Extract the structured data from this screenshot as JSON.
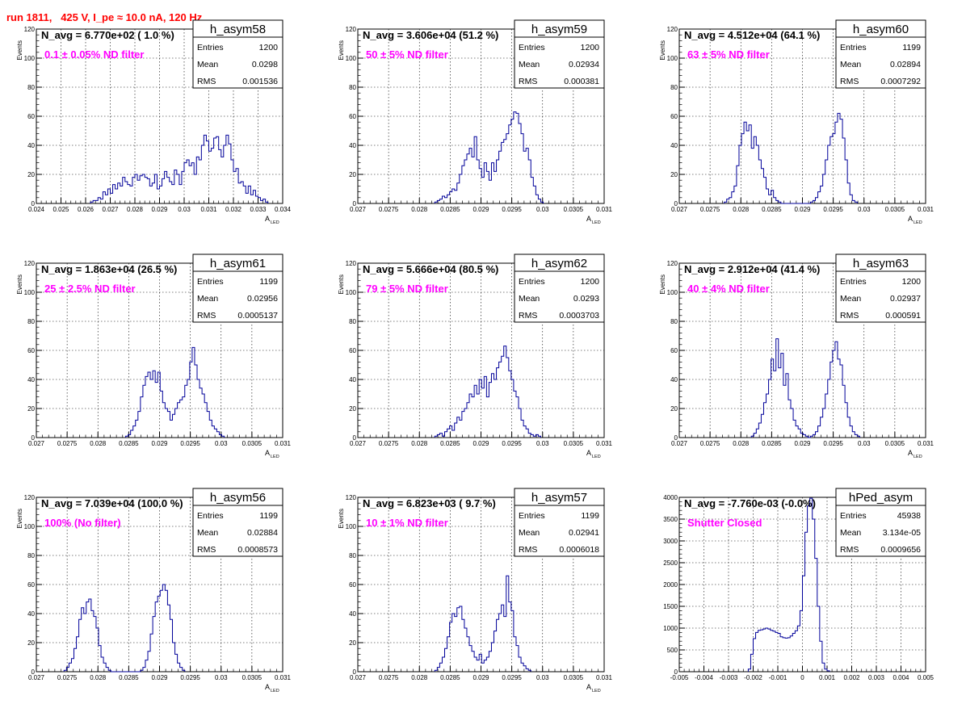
{
  "header": {
    "title": "run 1811,   425 V, I_pe ≈ 10.0 nA, 120 Hz"
  },
  "chart_data": [
    {
      "type": "bar",
      "name": "h_asym58",
      "annotation_line1": "N_avg = 6.770e+02 ( 1.0 %)",
      "annotation_line2": "0.1 ± 0.05% ND filter",
      "stats": {
        "Entries": "1200",
        "Mean": "0.0298",
        "RMS": "0.001536"
      },
      "ylabel": "Events",
      "xlabel": "A",
      "xlabel_sub": "LED",
      "xlim": [
        0.024,
        0.034
      ],
      "ylim": [
        0,
        120
      ],
      "x_ticks": [
        "0.024",
        "0.025",
        "0.026",
        "0.027",
        "0.028",
        "0.029",
        "0.03",
        "0.031",
        "0.032",
        "0.033",
        "0.034"
      ],
      "y_ticks": [
        "0",
        "20",
        "40",
        "60",
        "80",
        "100",
        "120"
      ],
      "bin_start": 0.0262,
      "bin_width": 0.0001,
      "values": [
        1,
        2,
        2,
        4,
        3,
        8,
        6,
        10,
        7,
        13,
        10,
        14,
        12,
        18,
        15,
        13,
        12,
        18,
        20,
        16,
        19,
        20,
        18,
        17,
        12,
        14,
        20,
        10,
        12,
        17,
        22,
        18,
        15,
        13,
        23,
        20,
        13,
        22,
        28,
        30,
        26,
        28,
        20,
        32,
        30,
        40,
        47,
        43,
        36,
        38,
        45,
        46,
        37,
        32,
        40,
        47,
        41,
        30,
        22,
        24,
        14,
        15,
        12,
        7,
        12,
        6,
        9,
        5,
        4,
        2,
        3,
        1
      ]
    },
    {
      "type": "bar",
      "name": "h_asym59",
      "annotation_line1": "N_avg = 3.606e+04 (51.2 %)",
      "annotation_line2": "50 ± 5% ND filter",
      "stats": {
        "Entries": "1200",
        "Mean": "0.02934",
        "RMS": "0.000381"
      },
      "ylabel": "Events",
      "xlabel": "A",
      "xlabel_sub": "LED",
      "xlim": [
        0.027,
        0.031
      ],
      "ylim": [
        0,
        120
      ],
      "x_ticks": [
        "0.027",
        "0.0275",
        "0.028",
        "0.0285",
        "0.029",
        "0.0295",
        "0.03",
        "0.0305",
        "0.031"
      ],
      "y_ticks": [
        "0",
        "20",
        "40",
        "60",
        "80",
        "100",
        "120"
      ],
      "bin_start": 0.02825,
      "bin_width": 4e-05,
      "values": [
        1,
        2,
        3,
        5,
        4,
        6,
        8,
        10,
        9,
        14,
        20,
        26,
        30,
        34,
        38,
        32,
        46,
        30,
        24,
        18,
        28,
        22,
        16,
        28,
        22,
        30,
        36,
        42,
        44,
        48,
        54,
        58,
        63,
        62,
        55,
        48,
        36,
        38,
        30,
        18,
        12,
        6,
        3,
        1
      ]
    },
    {
      "type": "bar",
      "name": "h_asym60",
      "annotation_line1": "N_avg = 4.512e+04 (64.1 %)",
      "annotation_line2": "63 ± 5% ND filter",
      "stats": {
        "Entries": "1199",
        "Mean": "0.02894",
        "RMS": "0.0007292"
      },
      "ylabel": "Events",
      "xlabel": "A",
      "xlabel_sub": "LED",
      "xlim": [
        0.027,
        0.031
      ],
      "ylim": [
        0,
        120
      ],
      "x_ticks": [
        "0.027",
        "0.0275",
        "0.028",
        "0.0285",
        "0.029",
        "0.0295",
        "0.03",
        "0.0305",
        "0.031"
      ],
      "y_ticks": [
        "0",
        "20",
        "40",
        "60",
        "80",
        "100",
        "120"
      ],
      "bin_start": 0.02773,
      "bin_width": 4e-05,
      "values": [
        1,
        3,
        4,
        8,
        12,
        26,
        40,
        48,
        56,
        50,
        54,
        38,
        46,
        40,
        30,
        24,
        18,
        10,
        6,
        9,
        4,
        2,
        1,
        0,
        0,
        0,
        0,
        0,
        0,
        0,
        0,
        0,
        0,
        0,
        0,
        1,
        2,
        4,
        8,
        12,
        20,
        30,
        40,
        46,
        48,
        56,
        62,
        58,
        45,
        30,
        14,
        6,
        2,
        1
      ]
    },
    {
      "type": "bar",
      "name": "h_asym61",
      "annotation_line1": "N_avg = 1.863e+04 (26.5 %)",
      "annotation_line2": "25 ± 2.5% ND filter",
      "stats": {
        "Entries": "1199",
        "Mean": "0.02956",
        "RMS": "0.0005137"
      },
      "ylabel": "Events",
      "xlabel": "A",
      "xlabel_sub": "LED",
      "xlim": [
        0.027,
        0.031
      ],
      "ylim": [
        0,
        120
      ],
      "x_ticks": [
        "0.027",
        "0.0275",
        "0.028",
        "0.0285",
        "0.029",
        "0.0295",
        "0.03",
        "0.0305",
        "0.031"
      ],
      "y_ticks": [
        "0",
        "20",
        "40",
        "60",
        "80",
        "100",
        "120"
      ],
      "bin_start": 0.02845,
      "bin_width": 4e-05,
      "values": [
        1,
        2,
        5,
        8,
        12,
        18,
        28,
        36,
        42,
        45,
        40,
        46,
        38,
        45,
        32,
        24,
        20,
        18,
        12,
        16,
        20,
        24,
        26,
        28,
        36,
        40,
        52,
        62,
        50,
        40,
        34,
        30,
        24,
        18,
        12,
        8,
        6,
        4,
        2,
        1
      ]
    },
    {
      "type": "bar",
      "name": "h_asym62",
      "annotation_line1": "N_avg = 5.666e+04 (80.5 %)",
      "annotation_line2": "79 ± 5% ND filter",
      "stats": {
        "Entries": "1200",
        "Mean": "0.0293",
        "RMS": "0.0003703"
      },
      "ylabel": "Events",
      "xlabel": "A",
      "xlabel_sub": "LED",
      "xlim": [
        0.027,
        0.031
      ],
      "ylim": [
        0,
        120
      ],
      "x_ticks": [
        "0.027",
        "0.0275",
        "0.028",
        "0.0285",
        "0.029",
        "0.0295",
        "0.03",
        "0.0305",
        "0.031"
      ],
      "y_ticks": [
        "0",
        "20",
        "40",
        "60",
        "80",
        "100",
        "120"
      ],
      "bin_start": 0.02825,
      "bin_width": 4e-05,
      "values": [
        1,
        2,
        3,
        1,
        4,
        6,
        8,
        5,
        10,
        14,
        12,
        18,
        20,
        24,
        30,
        28,
        36,
        30,
        40,
        34,
        42,
        28,
        38,
        44,
        40,
        48,
        52,
        56,
        63,
        55,
        46,
        40,
        32,
        28,
        20,
        12,
        8,
        6,
        3,
        2,
        1,
        2,
        1
      ]
    },
    {
      "type": "bar",
      "name": "h_asym63",
      "annotation_line1": "N_avg = 2.912e+04 (41.4 %)",
      "annotation_line2": "40 ± 4% ND filter",
      "stats": {
        "Entries": "1200",
        "Mean": "0.02937",
        "RMS": "0.000591"
      },
      "ylabel": "Events",
      "xlabel": "A",
      "xlabel_sub": "LED",
      "xlim": [
        0.027,
        0.031
      ],
      "ylim": [
        0,
        120
      ],
      "x_ticks": [
        "0.027",
        "0.0275",
        "0.028",
        "0.0285",
        "0.029",
        "0.0295",
        "0.03",
        "0.0305",
        "0.031"
      ],
      "y_ticks": [
        "0",
        "20",
        "40",
        "60",
        "80",
        "100",
        "120"
      ],
      "bin_start": 0.02817,
      "bin_width": 4e-05,
      "values": [
        1,
        3,
        6,
        10,
        16,
        24,
        30,
        40,
        54,
        46,
        68,
        48,
        58,
        36,
        44,
        26,
        20,
        12,
        8,
        6,
        3,
        2,
        1,
        0,
        1,
        2,
        4,
        8,
        14,
        20,
        30,
        40,
        52,
        60,
        66,
        54,
        50,
        36,
        24,
        14,
        8,
        4,
        2,
        1
      ]
    },
    {
      "type": "bar",
      "name": "h_asym56",
      "annotation_line1": "N_avg = 7.039e+04 (100.0 %)",
      "annotation_line2": "100% (No filter)",
      "stats": {
        "Entries": "1199",
        "Mean": "0.02884",
        "RMS": "0.0008573"
      },
      "ylabel": "Events",
      "xlabel": "A",
      "xlabel_sub": "LED",
      "xlim": [
        0.027,
        0.031
      ],
      "ylim": [
        0,
        120
      ],
      "x_ticks": [
        "0.027",
        "0.0275",
        "0.028",
        "0.0285",
        "0.029",
        "0.0295",
        "0.03",
        "0.0305",
        "0.031"
      ],
      "y_ticks": [
        "0",
        "20",
        "40",
        "60",
        "80",
        "100",
        "120"
      ],
      "bin_start": 0.02745,
      "bin_width": 4e-05,
      "values": [
        1,
        3,
        6,
        9,
        16,
        24,
        36,
        44,
        40,
        48,
        50,
        42,
        38,
        30,
        18,
        10,
        6,
        3,
        1,
        0,
        0,
        0,
        0,
        0,
        0,
        0,
        0,
        0,
        0,
        0,
        0,
        1,
        3,
        8,
        14,
        26,
        38,
        48,
        52,
        56,
        60,
        56,
        46,
        36,
        20,
        12,
        6,
        3,
        1
      ]
    },
    {
      "type": "bar",
      "name": "h_asym57",
      "annotation_line1": "N_avg = 6.823e+03 ( 9.7 %)",
      "annotation_line2": "10 ± 1% ND filter",
      "stats": {
        "Entries": "1199",
        "Mean": "0.02941",
        "RMS": "0.0006018"
      },
      "ylabel": "Events",
      "xlabel": "A",
      "xlabel_sub": "LED",
      "xlim": [
        0.027,
        0.031
      ],
      "ylim": [
        0,
        120
      ],
      "x_ticks": [
        "0.027",
        "0.0275",
        "0.028",
        "0.0285",
        "0.029",
        "0.0295",
        "0.03",
        "0.0305",
        "0.031"
      ],
      "y_ticks": [
        "0",
        "20",
        "40",
        "60",
        "80",
        "100",
        "120"
      ],
      "bin_start": 0.02825,
      "bin_width": 4e-05,
      "values": [
        1,
        3,
        6,
        10,
        16,
        24,
        34,
        40,
        38,
        44,
        45,
        36,
        30,
        24,
        18,
        14,
        10,
        8,
        12,
        6,
        8,
        10,
        14,
        20,
        28,
        36,
        40,
        46,
        38,
        66,
        48,
        42,
        24,
        18,
        10,
        6,
        4,
        2,
        1
      ]
    },
    {
      "type": "bar",
      "name": "hPed_asym",
      "annotation_line1": "N_avg = -7.760e-03 (-0.0%)",
      "annotation_line2": "Shutter Closed",
      "stats": {
        "Entries": "45938",
        "Mean": "3.134e-05",
        "RMS": "0.0009656"
      },
      "ylabel": "",
      "xlabel": "",
      "xlabel_sub": "",
      "xlim": [
        -0.005,
        0.005
      ],
      "ylim": [
        0,
        4000
      ],
      "x_ticks": [
        "-0.005",
        "-0.004",
        "-0.003",
        "-0.002",
        "-0.001",
        "0",
        "0.001",
        "0.002",
        "0.003",
        "0.004",
        "0.005"
      ],
      "y_ticks": [
        "0",
        "500",
        "1000",
        "1500",
        "2000",
        "2500",
        "3000",
        "3500",
        "4000"
      ],
      "bin_start": -0.0022,
      "bin_width": 0.0001,
      "values": [
        60,
        400,
        760,
        900,
        950,
        960,
        980,
        1000,
        980,
        950,
        930,
        900,
        880,
        800,
        780,
        770,
        780,
        820,
        880,
        940,
        1050,
        1400,
        2200,
        3200,
        3800,
        3980,
        3500,
        2600,
        1500,
        700,
        200,
        60,
        20
      ]
    }
  ]
}
